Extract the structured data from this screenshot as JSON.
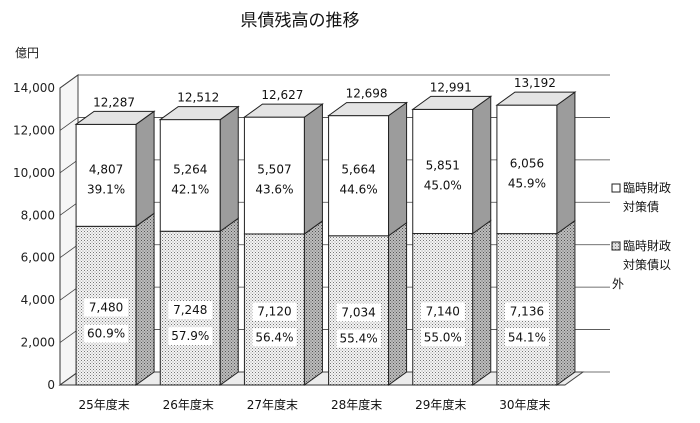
{
  "chart_data": {
    "type": "bar",
    "stacked": true,
    "title": "県債残高の推移",
    "ylabel": "億円",
    "ylim": [
      0,
      14000
    ],
    "yticks": [
      "0",
      "2,000",
      "4,000",
      "6,000",
      "8,000",
      "10,000",
      "12,000",
      "14,000"
    ],
    "categories": [
      "25年度末",
      "26年度末",
      "27年度末",
      "28年度末",
      "29年度末",
      "30年度末"
    ],
    "totals": [
      12287,
      12512,
      12627,
      12698,
      12991,
      13192
    ],
    "total_labels": [
      "12,287",
      "12,512",
      "12,627",
      "12,698",
      "12,991",
      "13,192"
    ],
    "series": [
      {
        "name": "臨時財政対策債以外",
        "legend_lines": [
          "臨時財政",
          "対策債以",
          "外"
        ],
        "pattern": "dotted",
        "values": [
          7480,
          7248,
          7120,
          7034,
          7140,
          7136
        ],
        "value_labels": [
          "7,480",
          "7,248",
          "7,120",
          "7,034",
          "7,140",
          "7,136"
        ],
        "pct_labels": [
          "60.9%",
          "57.9%",
          "56.4%",
          "55.4%",
          "55.0%",
          "54.1%"
        ]
      },
      {
        "name": "臨時財政対策債",
        "legend_lines": [
          "臨時財政",
          "対策債"
        ],
        "pattern": "white",
        "values": [
          4807,
          5264,
          5507,
          5664,
          5851,
          6056
        ],
        "value_labels": [
          "4,807",
          "5,264",
          "5,507",
          "5,664",
          "5,851",
          "6,056"
        ],
        "pct_labels": [
          "39.1%",
          "42.1%",
          "43.6%",
          "44.6%",
          "45.0%",
          "45.9%"
        ]
      }
    ],
    "grid": true,
    "three_d": true,
    "legend_position": "right"
  }
}
